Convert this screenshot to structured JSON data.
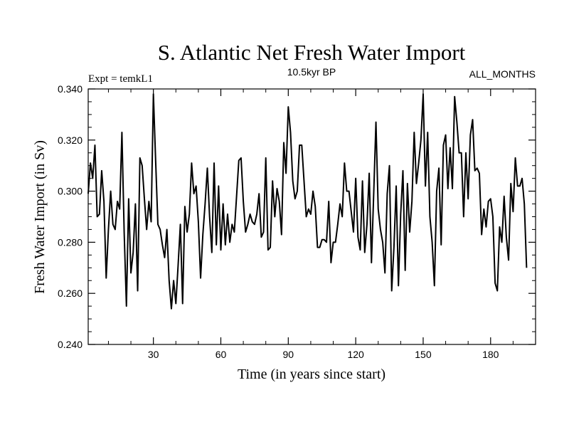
{
  "chart_data": {
    "type": "line",
    "title": "S. Atlantic Net Fresh Water Import",
    "subtitle_left": "Expt = temkL1",
    "subtitle_center": "10.5kyr BP",
    "subtitle_right": "ALL_MONTHS",
    "xlabel": "Time (in years since start)",
    "ylabel": "Fresh Water Import (in Sv)",
    "xlim": [
      1,
      200
    ],
    "ylim": [
      0.24,
      0.34
    ],
    "x_ticks": [
      30,
      60,
      90,
      120,
      150,
      180
    ],
    "y_ticks": [
      0.24,
      0.26,
      0.28,
      0.3,
      0.32,
      0.34
    ],
    "x_tick_labels": [
      "30",
      "60",
      "90",
      "120",
      "150",
      "180"
    ],
    "y_tick_labels": [
      "0.240",
      "0.260",
      "0.280",
      "0.300",
      "0.320",
      "0.340"
    ],
    "line_color": "#000000",
    "series": [
      {
        "name": "Fresh Water Import",
        "x_start": 1,
        "x_step": 1,
        "values": [
          0.299,
          0.311,
          0.305,
          0.318,
          0.29,
          0.291,
          0.308,
          0.296,
          0.266,
          0.285,
          0.3,
          0.287,
          0.285,
          0.296,
          0.293,
          0.323,
          0.284,
          0.255,
          0.297,
          0.268,
          0.276,
          0.295,
          0.261,
          0.313,
          0.31,
          0.297,
          0.285,
          0.296,
          0.288,
          0.338,
          0.312,
          0.287,
          0.285,
          0.279,
          0.274,
          0.285,
          0.265,
          0.254,
          0.265,
          0.256,
          0.271,
          0.287,
          0.256,
          0.294,
          0.284,
          0.291,
          0.311,
          0.299,
          0.302,
          0.288,
          0.266,
          0.283,
          0.295,
          0.309,
          0.29,
          0.276,
          0.311,
          0.279,
          0.302,
          0.277,
          0.295,
          0.279,
          0.291,
          0.28,
          0.287,
          0.284,
          0.298,
          0.312,
          0.313,
          0.296,
          0.284,
          0.287,
          0.291,
          0.288,
          0.287,
          0.291,
          0.299,
          0.282,
          0.284,
          0.313,
          0.277,
          0.278,
          0.304,
          0.29,
          0.301,
          0.296,
          0.283,
          0.319,
          0.307,
          0.333,
          0.323,
          0.304,
          0.297,
          0.3,
          0.318,
          0.318,
          0.304,
          0.29,
          0.293,
          0.291,
          0.3,
          0.294,
          0.278,
          0.278,
          0.281,
          0.281,
          0.28,
          0.296,
          0.272,
          0.28,
          0.28,
          0.287,
          0.295,
          0.29,
          0.311,
          0.3,
          0.3,
          0.292,
          0.284,
          0.305,
          0.282,
          0.277,
          0.304,
          0.276,
          0.287,
          0.307,
          0.272,
          0.299,
          0.327,
          0.293,
          0.285,
          0.28,
          0.268,
          0.299,
          0.31,
          0.261,
          0.278,
          0.302,
          0.263,
          0.291,
          0.308,
          0.269,
          0.303,
          0.284,
          0.296,
          0.323,
          0.303,
          0.311,
          0.32,
          0.338,
          0.302,
          0.323,
          0.29,
          0.28,
          0.263,
          0.3,
          0.309,
          0.279,
          0.318,
          0.322,
          0.301,
          0.317,
          0.301,
          0.337,
          0.327,
          0.315,
          0.315,
          0.29,
          0.315,
          0.297,
          0.322,
          0.328,
          0.308,
          0.309,
          0.307,
          0.283,
          0.293,
          0.286,
          0.296,
          0.297,
          0.29,
          0.264,
          0.261,
          0.286,
          0.28,
          0.298,
          0.282,
          0.273,
          0.303,
          0.292,
          0.313,
          0.302,
          0.302,
          0.305,
          0.295,
          0.27
        ]
      }
    ]
  }
}
